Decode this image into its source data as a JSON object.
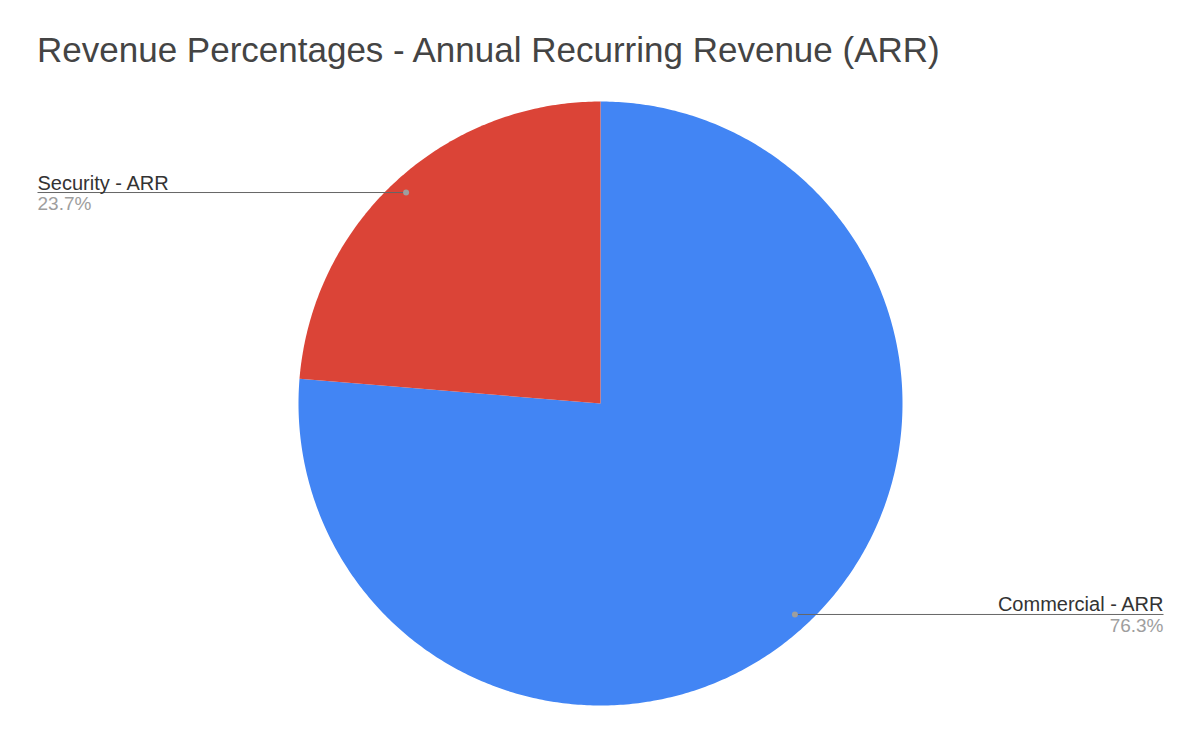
{
  "chart_data": {
    "type": "pie",
    "title": "Revenue Percentages - Annual Recurring Revenue (ARR)",
    "categories": [
      "Commercial - ARR",
      "Security - ARR"
    ],
    "values": [
      76.3,
      23.7
    ],
    "value_labels": [
      "76.3%",
      "23.7%"
    ],
    "colors": [
      "#4285f4",
      "#db4437"
    ],
    "data_labels": true
  }
}
